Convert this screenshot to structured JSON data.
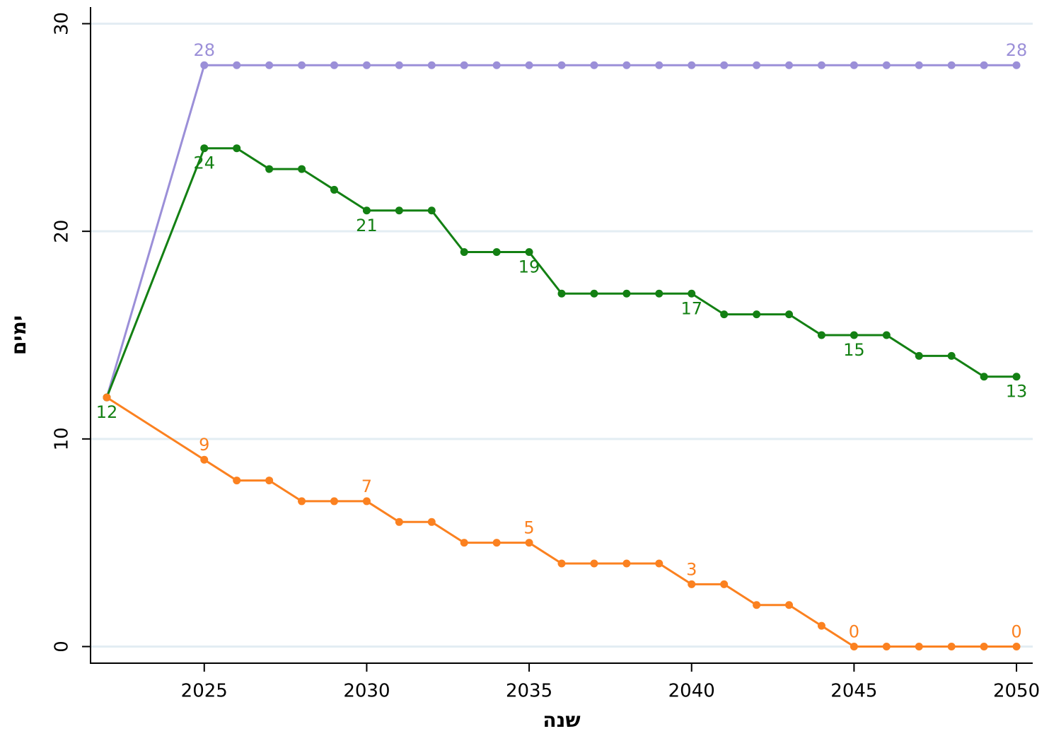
{
  "chart_data": {
    "type": "line",
    "x_label": "שנה",
    "y_label": "ימים",
    "x": [
      2022,
      2025,
      2026,
      2027,
      2028,
      2029,
      2030,
      2031,
      2032,
      2033,
      2034,
      2035,
      2036,
      2037,
      2038,
      2039,
      2040,
      2041,
      2042,
      2043,
      2044,
      2045,
      2046,
      2047,
      2048,
      2049,
      2050
    ],
    "series": [
      {
        "color": "#9b8fd8",
        "label_position": "above",
        "labeled_points": [
          1,
          26
        ],
        "values": [
          12,
          28,
          28,
          28,
          28,
          28,
          28,
          28,
          28,
          28,
          28,
          28,
          28,
          28,
          28,
          28,
          28,
          28,
          28,
          28,
          28,
          28,
          28,
          28,
          28,
          28,
          28
        ]
      },
      {
        "color": "#138013",
        "label_position": "below",
        "labeled_points": [
          0,
          1,
          6,
          11,
          16,
          21,
          26
        ],
        "values": [
          12,
          24,
          24,
          23,
          23,
          22,
          21,
          21,
          21,
          19,
          19,
          19,
          17,
          17,
          17,
          17,
          17,
          16,
          16,
          16,
          15,
          15,
          15,
          14,
          14,
          13,
          13
        ]
      },
      {
        "color": "#fb8120",
        "label_position": "above",
        "labeled_points": [
          1,
          6,
          11,
          16,
          21,
          26
        ],
        "values": [
          12,
          9,
          8,
          8,
          7,
          7,
          7,
          6,
          6,
          5,
          5,
          5,
          4,
          4,
          4,
          4,
          3,
          3,
          2,
          2,
          1,
          0,
          0,
          0,
          0,
          0,
          0
        ]
      }
    ],
    "xlim": [
      2021.5,
      2050.5
    ],
    "xticks": [
      2025,
      2030,
      2035,
      2040,
      2045,
      2050
    ],
    "ylim": [
      -0.8,
      30.8
    ],
    "yticks": [
      0,
      10,
      20,
      30
    ],
    "grid": true
  }
}
